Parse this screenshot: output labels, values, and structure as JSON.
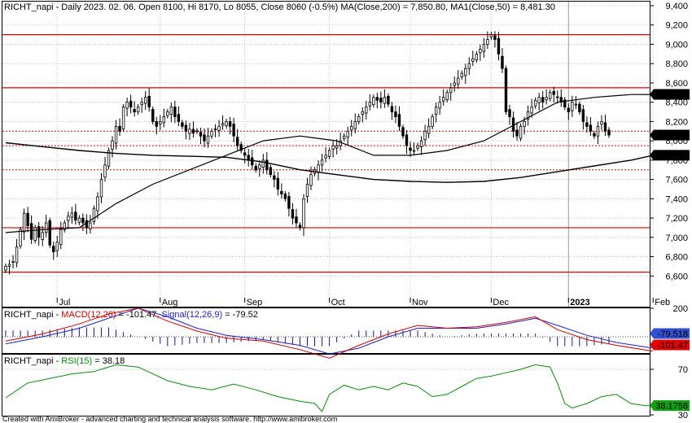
{
  "header": {
    "main": "RICHT_napi - Daily 2023. 02. 06. Open 8100, Hi 8170, Lo 8055, Close 8060 (-0.5%) MA(Close,200) = 7,850.80, MA1(Close,50) = 8,481.30",
    "macd_prefix": "RICHT_napi - ",
    "macd_label": "MACD(12,26)",
    "macd_value": " = -101.47, ",
    "signal_label": "Signal(12,26,9)",
    "signal_value": " = -79.52",
    "rsi_prefix": "RICHT_napi - ",
    "rsi_label": "RSI(15)",
    "rsi_value": " = 38.18"
  },
  "footer": "Created with AmiBroker - advanced charting and technical analysis software. http://www.amibroker.com",
  "colors": {
    "bull_candle": "#ffffff",
    "bear_candle": "#000000",
    "ma": "#000000",
    "hline_solid": "#dd0000",
    "hline_dotted": "#dd0000",
    "macd_line": "#cc0000",
    "signal_line": "#2020c0",
    "rsi_line": "#0b8a0b",
    "grid": "#c8c8c8",
    "macd_badge": "#e00000",
    "signal_badge": "#3050d0",
    "rsi_badge": "#10a010"
  },
  "chart_data": [
    {
      "type": "candlestick",
      "title": "RICHT_napi - Daily",
      "ylim": [
        6400,
        9400
      ],
      "yticks": [
        "9,400",
        "9,200",
        "9,000",
        "8,800",
        "8,600",
        "8,400",
        "8,200",
        "8,000",
        "7,800",
        "7,600",
        "7,400",
        "7,200",
        "7,000",
        "6,800",
        "6,600"
      ],
      "x_labels": [
        {
          "label": "Jul",
          "day": 14
        },
        {
          "label": "Aug",
          "day": 42
        },
        {
          "label": "Sep",
          "day": 65
        },
        {
          "label": "Oct",
          "day": 88
        },
        {
          "label": "Nov",
          "day": 110
        },
        {
          "label": "Dec",
          "day": 132
        },
        {
          "label": "2023",
          "day": 153
        },
        {
          "label": "Feb",
          "day": 176
        }
      ],
      "closes": [
        6700,
        6720,
        6750,
        6900,
        7080,
        7250,
        7120,
        6980,
        7100,
        7000,
        7050,
        7150,
        6920,
        6850,
        6950,
        7080,
        7150,
        7220,
        7250,
        7180,
        7200,
        7150,
        7100,
        7150,
        7300,
        7420,
        7600,
        7750,
        7900,
        8000,
        8150,
        8100,
        8350,
        8400,
        8350,
        8300,
        8350,
        8400,
        8450,
        8350,
        8200,
        8150,
        8200,
        8250,
        8300,
        8350,
        8250,
        8200,
        8150,
        8100,
        8120,
        8080,
        8100,
        8050,
        8000,
        8050,
        8100,
        8120,
        8150,
        8180,
        8200,
        8150,
        8050,
        7950,
        7900,
        7850,
        7800,
        7750,
        7700,
        7750,
        7800,
        7700,
        7650,
        7600,
        7500,
        7450,
        7400,
        7300,
        7200,
        7150,
        7100,
        7400,
        7550,
        7650,
        7700,
        7750,
        7800,
        7850,
        7900,
        7950,
        7950,
        8000,
        8050,
        8100,
        8150,
        8200,
        8250,
        8300,
        8350,
        8400,
        8450,
        8420,
        8400,
        8450,
        8380,
        8300,
        8250,
        8150,
        8050,
        7950,
        7900,
        7900,
        7950,
        8000,
        8100,
        8150,
        8250,
        8350,
        8400,
        8450,
        8500,
        8550,
        8600,
        8650,
        8700,
        8750,
        8800,
        8850,
        8900,
        8950,
        9000,
        9050,
        9100,
        9050,
        8900,
        8750,
        8300,
        8250,
        8100,
        8050,
        8150,
        8200,
        8300,
        8350,
        8420,
        8450,
        8400,
        8450,
        8500,
        8480,
        8450,
        8400,
        8350,
        8300,
        8400,
        8380,
        8300,
        8200,
        8150,
        8100,
        8050,
        8150,
        8200,
        8100,
        8060
      ],
      "ma_long": {
        "name": "MA(Close,200)",
        "last": 7850.8,
        "points": [
          [
            0,
            7980
          ],
          [
            10,
            7940
          ],
          [
            20,
            7900
          ],
          [
            30,
            7870
          ],
          [
            40,
            7850
          ],
          [
            50,
            7840
          ],
          [
            60,
            7830
          ],
          [
            70,
            7780
          ],
          [
            80,
            7700
          ],
          [
            90,
            7650
          ],
          [
            100,
            7600
          ],
          [
            110,
            7580
          ],
          [
            120,
            7570
          ],
          [
            130,
            7580
          ],
          [
            140,
            7620
          ],
          [
            150,
            7680
          ],
          [
            160,
            7740
          ],
          [
            170,
            7800
          ],
          [
            176,
            7850
          ]
        ]
      },
      "ma_short": {
        "name": "MA1(Close,50)",
        "last": 8481.3,
        "points": [
          [
            0,
            7050
          ],
          [
            10,
            7080
          ],
          [
            20,
            7100
          ],
          [
            30,
            7350
          ],
          [
            40,
            7550
          ],
          [
            50,
            7700
          ],
          [
            60,
            7850
          ],
          [
            70,
            8000
          ],
          [
            80,
            8050
          ],
          [
            90,
            8000
          ],
          [
            100,
            7850
          ],
          [
            110,
            7850
          ],
          [
            120,
            7900
          ],
          [
            130,
            8000
          ],
          [
            140,
            8200
          ],
          [
            150,
            8400
          ],
          [
            160,
            8450
          ],
          [
            170,
            8480
          ],
          [
            176,
            8481
          ]
        ]
      },
      "hlines_solid": [
        9100,
        8550,
        7100,
        6640
      ],
      "hlines_dotted": [
        8100,
        7950,
        7700
      ],
      "badges": [
        {
          "text": "8,481.3",
          "value": 8481.3
        },
        {
          "text": "8,060",
          "value": 8060
        },
        {
          "text": "7,850.8",
          "value": 7850.8
        }
      ]
    },
    {
      "type": "line",
      "title": "MACD",
      "ylim": [
        -200,
        200
      ],
      "yticks": [
        "200"
      ],
      "series": [
        {
          "name": "MACD(12,26)",
          "last": -101.47,
          "points": [
            [
              0,
              -30
            ],
            [
              10,
              20
            ],
            [
              20,
              90
            ],
            [
              28,
              160
            ],
            [
              36,
              200
            ],
            [
              44,
              110
            ],
            [
              52,
              40
            ],
            [
              60,
              -10
            ],
            [
              70,
              -30
            ],
            [
              80,
              -90
            ],
            [
              88,
              -150
            ],
            [
              96,
              -60
            ],
            [
              104,
              20
            ],
            [
              112,
              80
            ],
            [
              120,
              60
            ],
            [
              128,
              70
            ],
            [
              136,
              100
            ],
            [
              144,
              140
            ],
            [
              150,
              50
            ],
            [
              158,
              -20
            ],
            [
              166,
              -60
            ],
            [
              176,
              -101.47
            ]
          ]
        },
        {
          "name": "Signal(12,26,9)",
          "last": -79.52,
          "points": [
            [
              0,
              -50
            ],
            [
              10,
              0
            ],
            [
              20,
              60
            ],
            [
              28,
              130
            ],
            [
              36,
              200
            ],
            [
              44,
              140
            ],
            [
              52,
              60
            ],
            [
              60,
              10
            ],
            [
              70,
              -20
            ],
            [
              80,
              -60
            ],
            [
              88,
              -120
            ],
            [
              96,
              -80
            ],
            [
              104,
              0
            ],
            [
              112,
              60
            ],
            [
              120,
              60
            ],
            [
              128,
              60
            ],
            [
              136,
              90
            ],
            [
              144,
              130
            ],
            [
              150,
              80
            ],
            [
              158,
              10
            ],
            [
              166,
              -40
            ],
            [
              176,
              -79.52
            ]
          ]
        }
      ],
      "badges": [
        {
          "text": "-79.518",
          "value": -79.518
        },
        {
          "text": "-101.47",
          "value": -101.47
        }
      ]
    },
    {
      "type": "line",
      "title": "RSI",
      "ylim": [
        30,
        80
      ],
      "yticks": [
        "70",
        "30"
      ],
      "series": [
        {
          "name": "RSI(15)",
          "last": 38.18,
          "points": [
            [
              0,
              45
            ],
            [
              6,
              58
            ],
            [
              12,
              62
            ],
            [
              18,
              66
            ],
            [
              24,
              68
            ],
            [
              30,
              74
            ],
            [
              36,
              72
            ],
            [
              40,
              66
            ],
            [
              44,
              60
            ],
            [
              50,
              55
            ],
            [
              56,
              52
            ],
            [
              62,
              57
            ],
            [
              68,
              52
            ],
            [
              74,
              46
            ],
            [
              80,
              42
            ],
            [
              84,
              40
            ],
            [
              86,
              33
            ],
            [
              88,
              48
            ],
            [
              92,
              56
            ],
            [
              96,
              52
            ],
            [
              100,
              55
            ],
            [
              104,
              52
            ],
            [
              108,
              58
            ],
            [
              112,
              55
            ],
            [
              116,
              46
            ],
            [
              120,
              48
            ],
            [
              124,
              55
            ],
            [
              128,
              62
            ],
            [
              132,
              64
            ],
            [
              136,
              67
            ],
            [
              140,
              70
            ],
            [
              144,
              74
            ],
            [
              148,
              72
            ],
            [
              150,
              58
            ],
            [
              152,
              40
            ],
            [
              154,
              36
            ],
            [
              158,
              40
            ],
            [
              162,
              46
            ],
            [
              166,
              48
            ],
            [
              170,
              40
            ],
            [
              174,
              38
            ],
            [
              176,
              38.18
            ]
          ]
        }
      ],
      "badges": [
        {
          "text": "38.1758",
          "value": 38.1758
        }
      ]
    }
  ]
}
